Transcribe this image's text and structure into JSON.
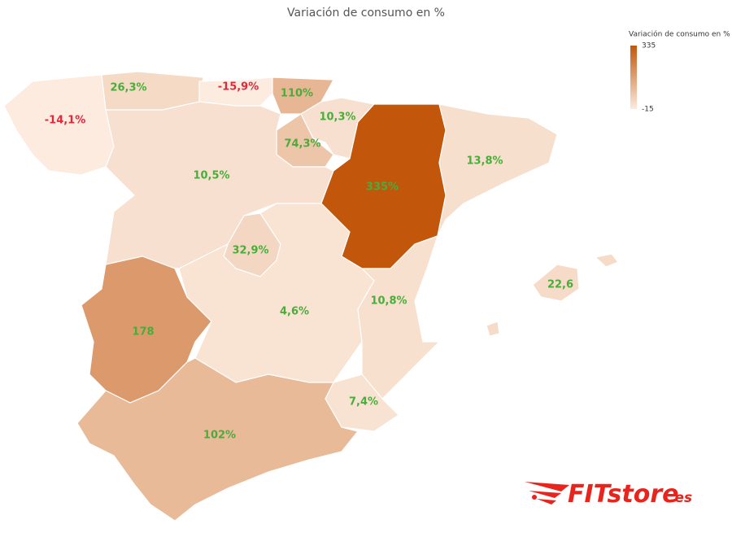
{
  "chart_data": {
    "type": "choropleth",
    "title": "Variación de consumo en %",
    "values": [
      -14.1,
      26.3,
      -15.9,
      110,
      10.3,
      74.3,
      10.5,
      335,
      13.8,
      32.9,
      178,
      4.6,
      10.8,
      7.4,
      102,
      22.6
    ],
    "value_labels": [
      "-14,1%",
      "26,3%",
      "-15,9%",
      "110%",
      "10,3%",
      "74,3%",
      "10,5%",
      "335%",
      "13,8%",
      "32,9%",
      "178",
      "4,6%",
      "10,8%",
      "7,4%",
      "102%",
      "22,6"
    ],
    "colorbar_title": "Variación de consumo en %",
    "zlim": [
      -15,
      335
    ],
    "zticks": [
      335,
      -15
    ],
    "colorscale": [
      "#fcebdf",
      "#c2570c"
    ],
    "positive_label_color": "#48ad3a",
    "negative_label_color": "#e0283c",
    "border_color": "#ffffff"
  },
  "logo": {
    "brand": "FITstore",
    "suffix": ".es"
  }
}
